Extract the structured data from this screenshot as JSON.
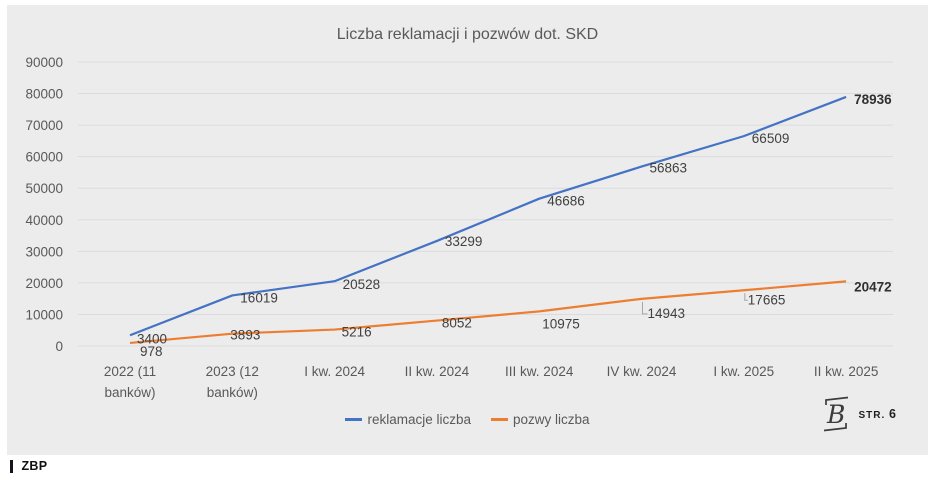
{
  "chart_data": {
    "type": "line",
    "title": "Liczba reklamacji i pozwów dot. SKD",
    "categories": [
      "2022 (11 banków)",
      "2023 (12 banków)",
      "I kw. 2024",
      "II kw. 2024",
      "III kw. 2024",
      "IV kw. 2024",
      "I kw. 2025",
      "II kw. 2025"
    ],
    "series": [
      {
        "name": "reklamacje liczba",
        "color": "#4472C4",
        "values": [
          3400,
          16019,
          20528,
          33299,
          46686,
          56863,
          66509,
          78936
        ]
      },
      {
        "name": "pozwy liczba",
        "color": "#ED7D31",
        "values": [
          978,
          3893,
          5216,
          8052,
          10975,
          14943,
          17665,
          20472
        ]
      }
    ],
    "ylim": [
      0,
      90000
    ],
    "y_tick_step": 10000,
    "y_tick_labels": [
      "0",
      "10000",
      "20000",
      "30000",
      "40000",
      "50000",
      "60000",
      "70000",
      "80000",
      "90000"
    ],
    "grid": true,
    "legend_position": "bottom",
    "data_labels": true,
    "last_point_labels_bold": true,
    "colors": {
      "plot_background": "#ECECEC",
      "gridline": "#DBDBDB",
      "axis_text": "#595959",
      "data_label_text": "#404040",
      "leader_line": "#A6A6A6"
    }
  },
  "branding": {
    "logo_letter": "B",
    "page_label": "STR.",
    "page_number": "6"
  },
  "footer": {
    "source": "ZBP"
  }
}
